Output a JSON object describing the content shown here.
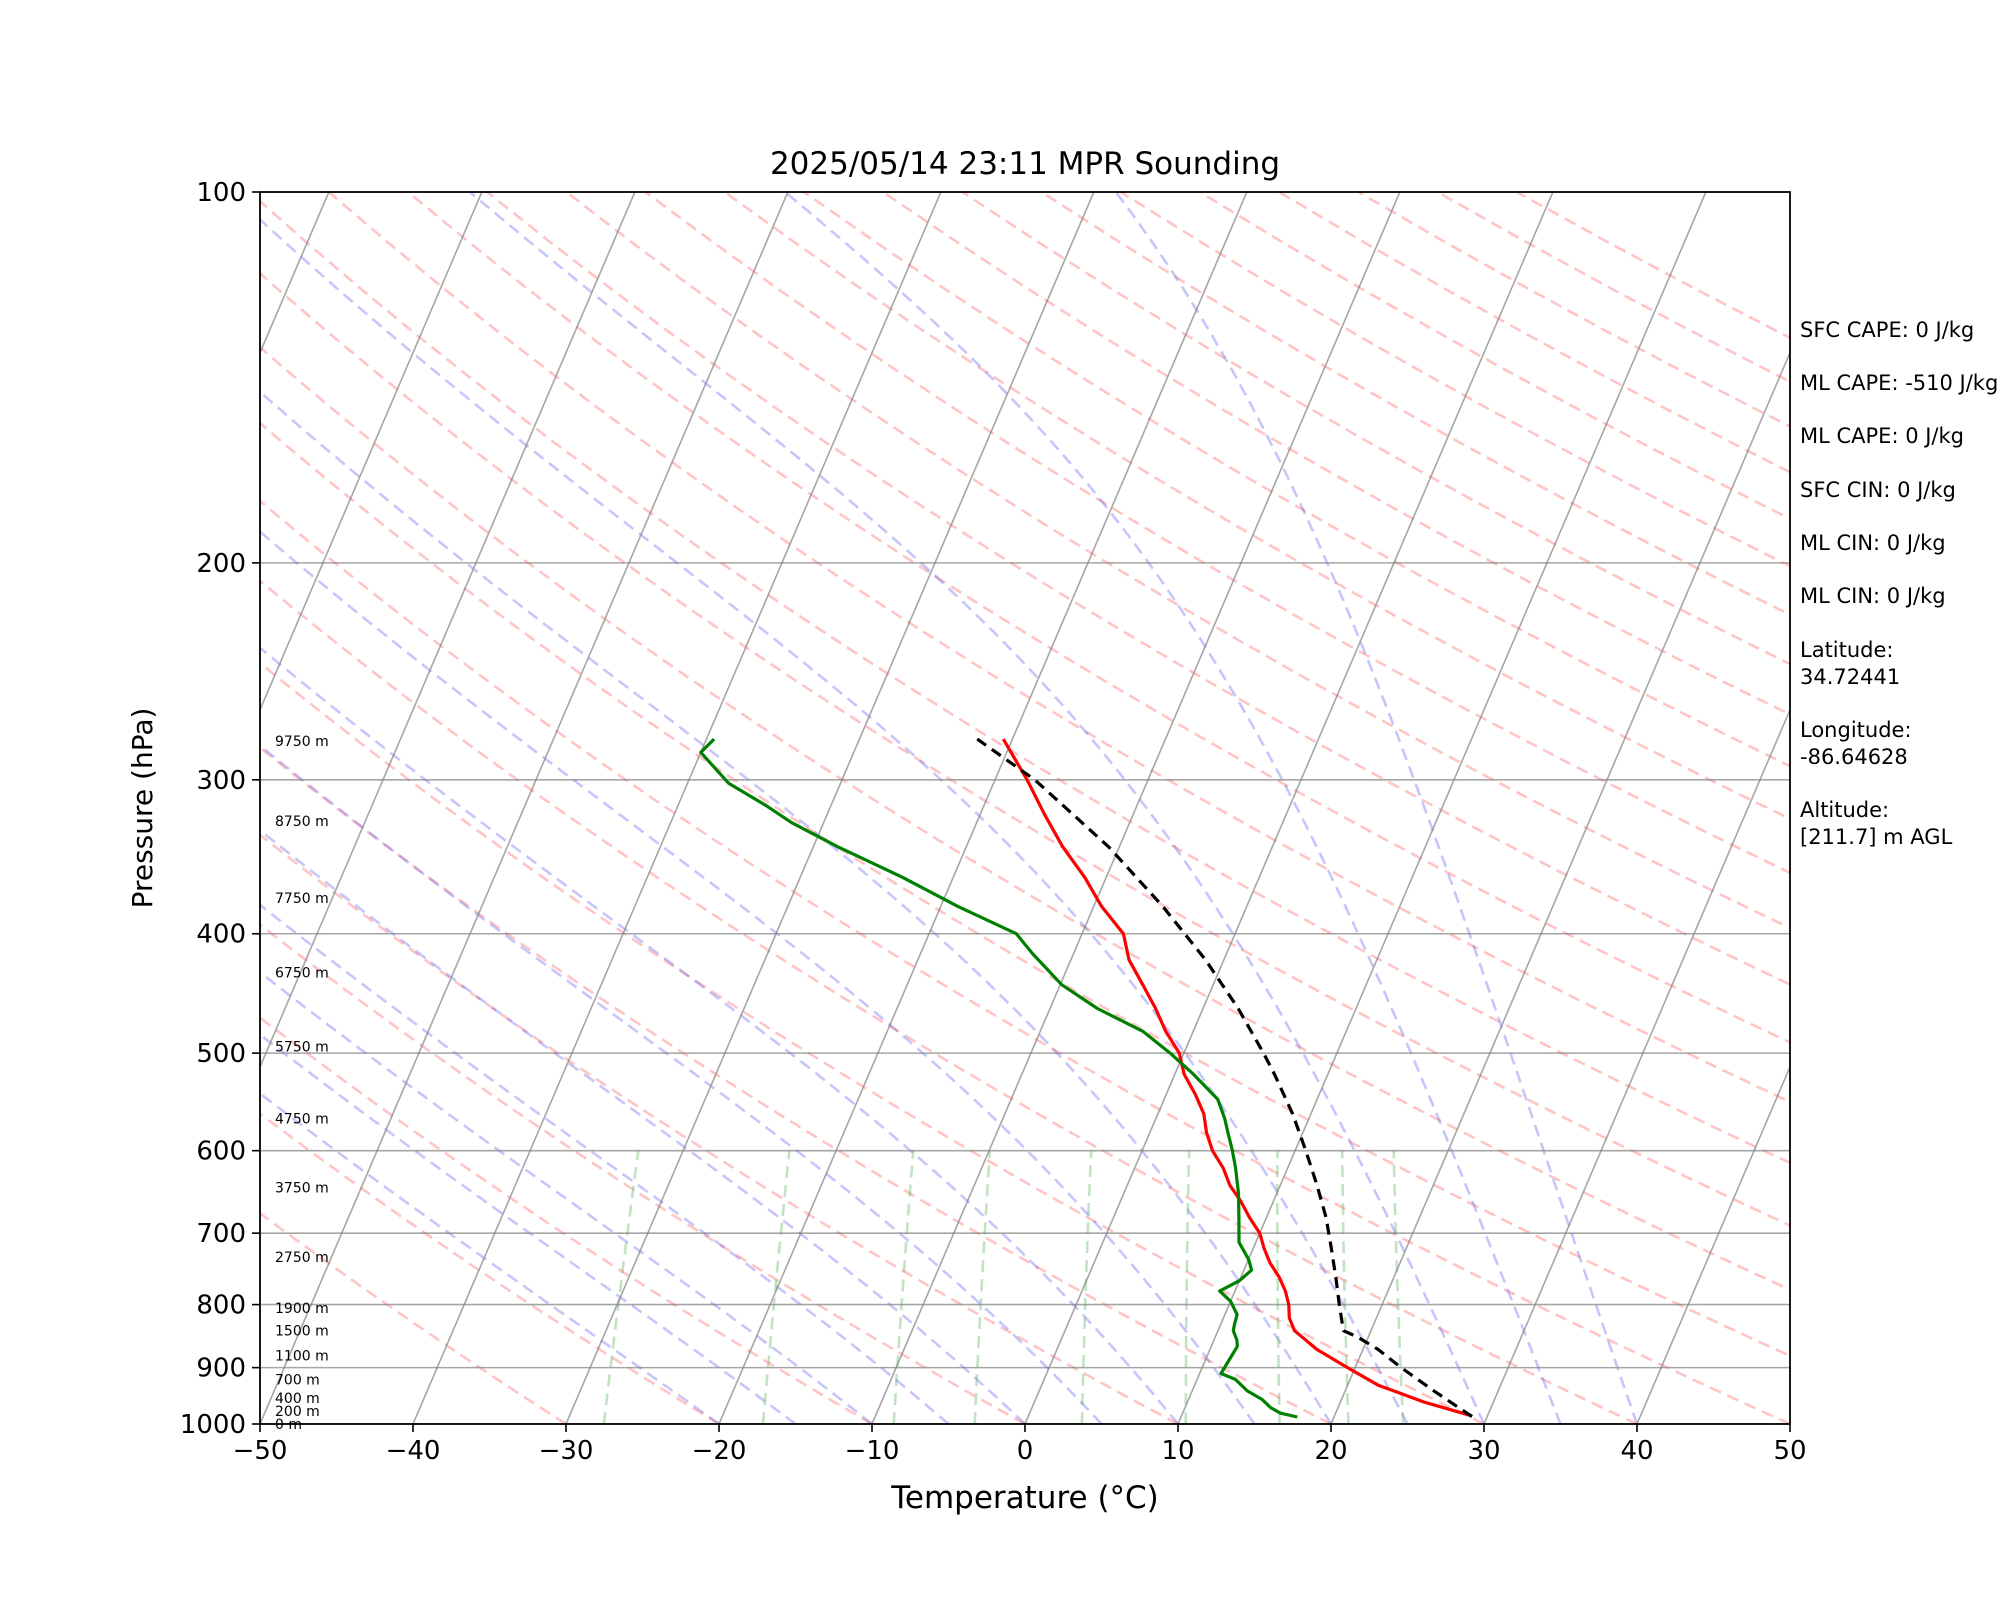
{
  "chart_data": {
    "type": "line",
    "title": "2025/05/14 23:11 MPR Sounding",
    "xlabel": "Temperature (°C)",
    "ylabel": "Pressure (hPa)",
    "xlim": [
      -50,
      50
    ],
    "ylim": [
      1000,
      100
    ],
    "y_scale": "log",
    "grid": true,
    "x_ticks": [
      -50,
      -40,
      -30,
      -20,
      -10,
      0,
      10,
      20,
      30,
      40,
      50
    ],
    "x_tick_labels": [
      "−50",
      "−40",
      "−30",
      "−20",
      "−10",
      "0",
      "10",
      "20",
      "30",
      "40",
      "50"
    ],
    "y_ticks": [
      1000,
      900,
      800,
      700,
      600,
      500,
      400,
      300,
      200,
      100
    ],
    "y_tick_labels": [
      "1000",
      "900",
      "800",
      "700",
      "600",
      "500",
      "400",
      "300",
      "200",
      "100"
    ],
    "height_labels": [
      {
        "p": 1000,
        "label": "0 m"
      },
      {
        "p": 976,
        "label": "200 m"
      },
      {
        "p": 953,
        "label": "400 m"
      },
      {
        "p": 920,
        "label": "700 m"
      },
      {
        "p": 880,
        "label": "1100 m"
      },
      {
        "p": 840,
        "label": "1500 m"
      },
      {
        "p": 805,
        "label": "1900 m"
      },
      {
        "p": 732,
        "label": "2750 m"
      },
      {
        "p": 643,
        "label": "3750 m"
      },
      {
        "p": 565,
        "label": "4750 m"
      },
      {
        "p": 494,
        "label": "5750 m"
      },
      {
        "p": 430,
        "label": "6750 m"
      },
      {
        "p": 374,
        "label": "7750 m"
      },
      {
        "p": 324,
        "label": "8750 m"
      },
      {
        "p": 279,
        "label": "9750 m"
      }
    ],
    "series": [
      {
        "name": "",
        "role": "temperature",
        "color": "#ff0000",
        "p": [
          985,
          960,
          930,
          900,
          870,
          840,
          820,
          800,
          780,
          760,
          740,
          720,
          700,
          680,
          660,
          640,
          620,
          600,
          580,
          560,
          540,
          520,
          500,
          480,
          460,
          440,
          420,
          400,
          380,
          360,
          340,
          320,
          300,
          278
        ],
        "t": [
          29.0,
          25.5,
          22.0,
          19.5,
          17.0,
          15.0,
          14.3,
          13.9,
          13.3,
          12.5,
          11.5,
          10.7,
          10.0,
          8.9,
          7.9,
          6.7,
          5.8,
          4.6,
          3.7,
          3.0,
          1.9,
          0.6,
          -0.3,
          -1.8,
          -3.1,
          -4.6,
          -6.2,
          -7.3,
          -9.5,
          -11.4,
          -13.7,
          -15.8,
          -17.9,
          -20.6
        ]
      },
      {
        "name": "",
        "role": "dewpoint",
        "color": "#008000",
        "p": [
          987,
          980,
          970,
          955,
          940,
          920,
          910,
          880,
          865,
          855,
          840,
          830,
          815,
          795,
          780,
          765,
          750,
          735,
          712,
          680,
          650,
          620,
          600,
          580,
          565,
          545,
          520,
          500,
          480,
          460,
          440,
          415,
          400,
          380,
          360,
          340,
          325,
          315,
          302,
          285,
          278
        ],
        "t": [
          17.6,
          16.4,
          15.6,
          14.8,
          13.6,
          12.5,
          11.4,
          11.6,
          11.7,
          11.5,
          11.0,
          10.9,
          10.8,
          10.0,
          9.0,
          10.0,
          10.5,
          10.0,
          8.9,
          8.2,
          7.5,
          6.6,
          5.9,
          5.1,
          4.5,
          3.5,
          1.2,
          -0.9,
          -3.3,
          -6.9,
          -9.9,
          -12.7,
          -14.3,
          -18.9,
          -23.3,
          -28.4,
          -32.1,
          -34.2,
          -37.3,
          -40.0,
          -39.5
        ]
      },
      {
        "name": "",
        "role": "parcel",
        "color": "#000000",
        "p": [
          986,
          940,
          900,
          870,
          850,
          840,
          800,
          760,
          720,
          680,
          640,
          600,
          560,
          520,
          500,
          460,
          420,
          380,
          340,
          300,
          278
        ],
        "t": [
          29.0,
          25.8,
          23.0,
          21.0,
          19.3,
          18.2,
          17.2,
          16.2,
          15.1,
          13.9,
          12.4,
          10.7,
          8.8,
          6.5,
          5.2,
          2.3,
          -1.2,
          -5.5,
          -10.7,
          -17.4,
          -22.3
        ]
      }
    ]
  },
  "side_info": [
    "SFC CAPE: 0 J/kg",
    "ML CAPE: -510 J/kg",
    "ML CAPE: 0 J/kg",
    "SFC CIN: 0 J/kg",
    "ML CIN: 0 J/kg",
    "ML CIN: 0 J/kg",
    "Latitude:",
    "34.72441",
    "Longitude:",
    "-86.64628",
    "Altitude:",
    "[211.7] m AGL"
  ]
}
